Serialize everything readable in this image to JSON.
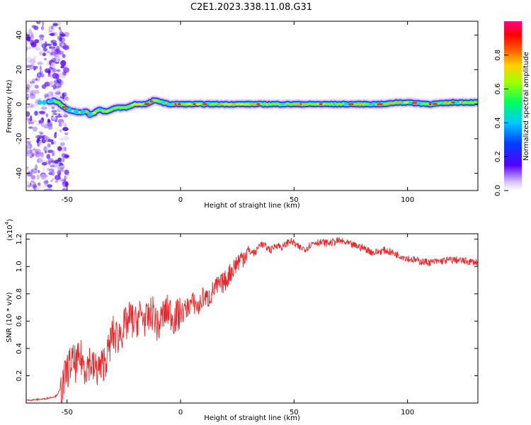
{
  "title": "C2E1.2023.338.11.08.G31",
  "top_panel": {
    "xlabel": "Height of straight line (km)",
    "ylabel": "Frequency (Hz)",
    "xticks": [
      -50,
      0,
      50,
      100
    ],
    "yticks": [
      -40,
      -20,
      0,
      20,
      40
    ],
    "colorbar": {
      "label": "Normalized spectral amplitude",
      "ticks": [
        "0.0",
        "0.2",
        "0.4",
        "0.6",
        "0.8"
      ]
    }
  },
  "bottom_panel": {
    "xlabel": "Height of straight line (km)",
    "ylabel": "SNR (10 * v/v)",
    "multiplier": "(x10",
    "multiplier_exp": "4",
    "multiplier_close": ")",
    "xticks": [
      -50,
      0,
      50,
      100
    ],
    "yticks": [
      "0.2",
      "0.4",
      "0.6",
      "0.8",
      "1.0",
      "1.2"
    ]
  },
  "chart_data": [
    {
      "type": "heatmap",
      "title": "C2E1.2023.338.11.08.G31",
      "xlabel": "Height of straight line (km)",
      "ylabel": "Frequency (Hz)",
      "xlim": [
        -68,
        131
      ],
      "ylim": [
        -50,
        48
      ],
      "colorbar_label": "Normalized spectral amplitude",
      "colorbar_range": [
        0,
        1
      ],
      "ridge_x": [
        -60,
        -56,
        -54,
        -50,
        -47,
        -44,
        -42,
        -40,
        -38,
        -36,
        -34,
        -32,
        -30,
        -28,
        -26,
        -24,
        -22,
        -20,
        -18,
        -15,
        -12,
        -10,
        -8,
        -5,
        0,
        5,
        10,
        20,
        30,
        40,
        50,
        60,
        70,
        80,
        90,
        95,
        100,
        110,
        120,
        131
      ],
      "ridge_freq": [
        1,
        2,
        1,
        -3,
        -4,
        -5,
        -4,
        -6,
        -5,
        -3,
        -4,
        -4,
        -3,
        -2,
        -2,
        -2,
        -1,
        0,
        0,
        0,
        2,
        2,
        1,
        0,
        0,
        0,
        0,
        0,
        0,
        0,
        0,
        0,
        0,
        0,
        0,
        1,
        1,
        0,
        1,
        1
      ]
    },
    {
      "type": "line",
      "title": "",
      "xlabel": "Height of straight line (km)",
      "ylabel": "SNR (10 * v/v)",
      "xlim": [
        -68,
        131
      ],
      "ylim": [
        0,
        12400
      ],
      "color": "#e8272a",
      "x": [
        -68,
        -60,
        -55,
        -52,
        -50,
        -48,
        -46,
        -44,
        -42,
        -40,
        -38,
        -35,
        -32,
        -30,
        -28,
        -25,
        -22,
        -20,
        -18,
        -15,
        -12,
        -10,
        -8,
        -5,
        -3,
        0,
        3,
        5,
        8,
        10,
        12,
        15,
        18,
        20,
        22,
        25,
        28,
        30,
        33,
        35,
        38,
        40,
        42,
        45,
        48,
        50,
        52,
        55,
        58,
        60,
        65,
        70,
        75,
        80,
        85,
        90,
        95,
        100,
        105,
        110,
        115,
        120,
        125,
        131
      ],
      "y": [
        200,
        300,
        500,
        1200,
        2400,
        3000,
        2800,
        3300,
        2600,
        3100,
        2400,
        2600,
        3600,
        5100,
        4800,
        5500,
        6200,
        5800,
        6500,
        6000,
        6700,
        5500,
        6400,
        6800,
        6200,
        6500,
        7000,
        7400,
        7000,
        7800,
        7600,
        8400,
        8700,
        9000,
        9600,
        10300,
        10800,
        11100,
        11000,
        11700,
        11400,
        11200,
        11600,
        11400,
        11900,
        11700,
        11400,
        11300,
        11700,
        11800,
        11700,
        11900,
        11600,
        11400,
        11000,
        11200,
        10900,
        10600,
        10400,
        10300,
        10400,
        10500,
        10400,
        10300
      ]
    }
  ]
}
